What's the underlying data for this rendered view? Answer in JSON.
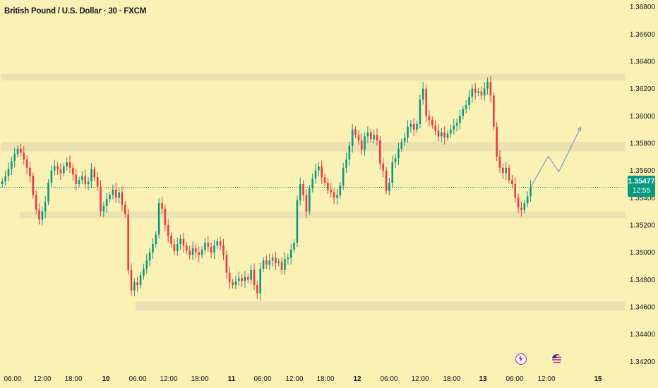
{
  "header": {
    "title": "British Pound / U.S. Dollar · 30 · FXCM"
  },
  "price_scale": {
    "labels": [
      "1.36800",
      "1.36600",
      "1.36400",
      "1.36200",
      "1.36000",
      "1.35800",
      "1.35600",
      "1.35400",
      "1.35200",
      "1.35000",
      "1.34800",
      "1.34600",
      "1.34400",
      "1.34200"
    ],
    "current_price": "1.35477",
    "countdown": "12:55"
  },
  "time_scale": {
    "labels": [
      "06:00",
      "12:00",
      "18:00",
      "10",
      "06:00",
      "12:00",
      "18:00",
      "11",
      "06:00",
      "12:00",
      "18:00",
      "12",
      "06:00",
      "12:00",
      "18:00",
      "13",
      "06:00",
      "12:00",
      "15"
    ]
  },
  "events": {
    "bolt_icon": "lightning-event-icon",
    "flag_icon": "us-flag-event-icon"
  },
  "colors": {
    "up": "#089981",
    "down": "#f23645",
    "zone": "#e8dfb0",
    "projection": "#7d9bc9",
    "background": "#fcf1b5",
    "badge": "#089981"
  },
  "chart_data": {
    "type": "candlestick",
    "title": "British Pound / U.S. Dollar · 30 · FXCM",
    "ylim": [
      1.3415,
      1.3685
    ],
    "zones": [
      {
        "low": 1.3626,
        "high": 1.3631
      },
      {
        "low": 1.3574,
        "high": 1.3581
      },
      {
        "low": 1.3525,
        "high": 1.353
      },
      {
        "low": 1.3457,
        "high": 1.3464
      }
    ],
    "current_price": 1.35477,
    "closes": [
      1.3552,
      1.3556,
      1.3561,
      1.3567,
      1.3572,
      1.3576,
      1.3573,
      1.3568,
      1.3562,
      1.3556,
      1.3542,
      1.3531,
      1.3524,
      1.353,
      1.3537,
      1.3551,
      1.356,
      1.3563,
      1.3561,
      1.3558,
      1.3563,
      1.3566,
      1.3562,
      1.3557,
      1.355,
      1.3553,
      1.3556,
      1.355,
      1.3552,
      1.3561,
      1.3555,
      1.3548,
      1.353,
      1.3534,
      1.3539,
      1.3542,
      1.3546,
      1.354,
      1.3544,
      1.3535,
      1.3528,
      1.3487,
      1.3472,
      1.3478,
      1.3476,
      1.3483,
      1.3488,
      1.3494,
      1.35,
      1.3506,
      1.3513,
      1.3536,
      1.3532,
      1.352,
      1.3512,
      1.3506,
      1.3501,
      1.3506,
      1.351,
      1.3505,
      1.3501,
      1.3498,
      1.3503,
      1.35,
      1.3498,
      1.3502,
      1.3507,
      1.3504,
      1.35,
      1.3505,
      1.3508,
      1.3505,
      1.3498,
      1.3485,
      1.3478,
      1.3476,
      1.3479,
      1.3481,
      1.3479,
      1.3482,
      1.348,
      1.3487,
      1.3476,
      1.347,
      1.3488,
      1.3494,
      1.3491,
      1.3494,
      1.3496,
      1.3492,
      1.3493,
      1.3487,
      1.3495,
      1.3496,
      1.3502,
      1.3507,
      1.3538,
      1.355,
      1.3542,
      1.353,
      1.3547,
      1.3554,
      1.356,
      1.3563,
      1.3555,
      1.3551,
      1.3546,
      1.3544,
      1.354,
      1.3542,
      1.3549,
      1.3562,
      1.3568,
      1.3578,
      1.359,
      1.3586,
      1.3582,
      1.3575,
      1.3585,
      1.3588,
      1.3583,
      1.3586,
      1.3582,
      1.3565,
      1.356,
      1.3545,
      1.3551,
      1.3566,
      1.3569,
      1.3576,
      1.3581,
      1.3584,
      1.3592,
      1.3594,
      1.359,
      1.3594,
      1.3612,
      1.362,
      1.36,
      1.3597,
      1.3593,
      1.3589,
      1.3585,
      1.3588,
      1.3584,
      1.3587,
      1.359,
      1.3593,
      1.3595,
      1.36,
      1.3605,
      1.3608,
      1.3614,
      1.362,
      1.3617,
      1.3618,
      1.3615,
      1.362,
      1.3625,
      1.3615,
      1.3592,
      1.357,
      1.3562,
      1.3558,
      1.3562,
      1.3553,
      1.355,
      1.354,
      1.3533,
      1.3531,
      1.3536,
      1.3541,
      1.3548
    ]
  }
}
